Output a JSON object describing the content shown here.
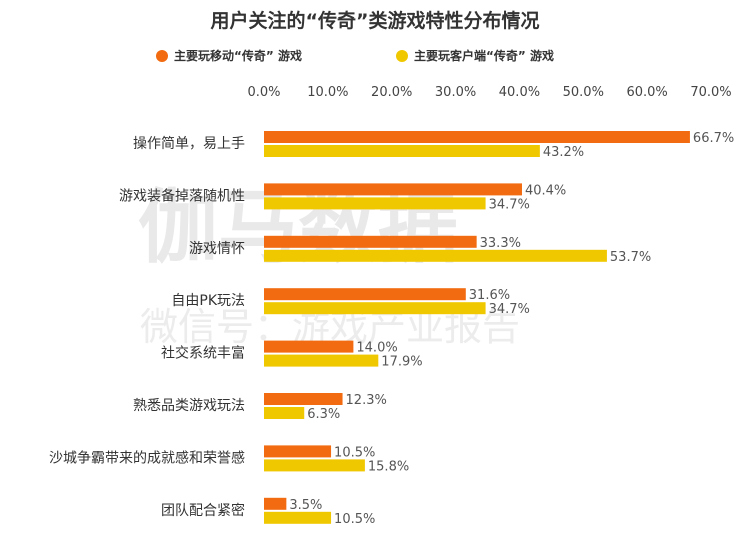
{
  "chart_data": {
    "type": "bar",
    "orientation": "horizontal",
    "title": "用户关注的“传奇”类游戏特性分布情况",
    "categories": [
      "操作简单，易上手",
      "游戏装备掉落随机性",
      "游戏情怀",
      "自由PK玩法",
      "社交系统丰富",
      "熟悉品类游戏玩法",
      "沙城争霸带来的成就感和荣誉感",
      "团队配合紧密"
    ],
    "series": [
      {
        "name": "主要玩移动“传奇” 游戏",
        "color": "#F26B10",
        "values": [
          66.7,
          40.4,
          33.3,
          31.6,
          14.0,
          12.3,
          10.5,
          3.5
        ],
        "labels": [
          "66.7%",
          "40.4%",
          "33.3%",
          "31.6%",
          "14.0%",
          "12.3%",
          "10.5%",
          "3.5%"
        ]
      },
      {
        "name": "主要玩客户端“传奇” 游戏",
        "color": "#F0C800",
        "values": [
          43.2,
          34.7,
          53.7,
          34.7,
          17.9,
          6.3,
          15.8,
          10.5
        ],
        "labels": [
          "43.2%",
          "34.7%",
          "53.7%",
          "34.7%",
          "17.9%",
          "6.3%",
          "15.8%",
          "10.5%"
        ]
      }
    ],
    "xlim": [
      0,
      70
    ],
    "xticks": [
      "0.0%",
      "10.0%",
      "20.0%",
      "30.0%",
      "40.0%",
      "50.0%",
      "60.0%",
      "70.0%"
    ],
    "grid": false,
    "legend": "top-left"
  },
  "watermark": {
    "main": "伽马数据",
    "sub": "微信号：游戏产业报告"
  }
}
